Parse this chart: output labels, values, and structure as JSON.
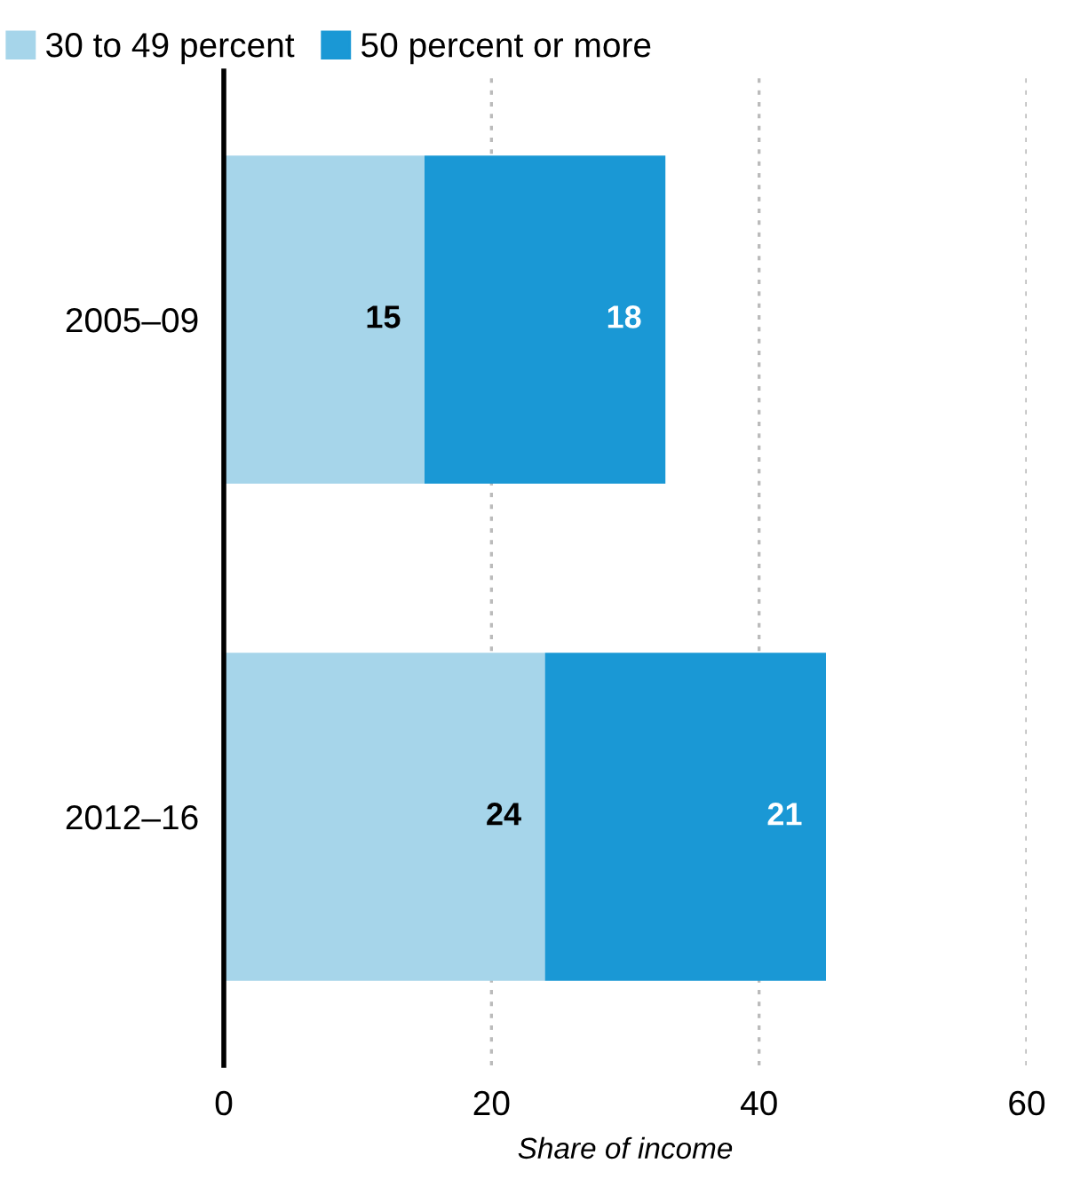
{
  "chart_data": {
    "type": "bar",
    "orientation": "horizontal",
    "stacked": true,
    "categories": [
      "2005–09",
      "2012–16"
    ],
    "series": [
      {
        "name": "30 to 49 percent",
        "color": "#a6d5ea",
        "values": [
          15,
          24
        ]
      },
      {
        "name": "50 percent or more",
        "color": "#1a98d5",
        "values": [
          18,
          21
        ]
      }
    ],
    "xlabel": "Share of income",
    "xlim": [
      0,
      60
    ],
    "xticks": [
      0,
      20,
      40,
      60
    ],
    "grid": "x",
    "legend": "top left",
    "data_labels": true
  }
}
